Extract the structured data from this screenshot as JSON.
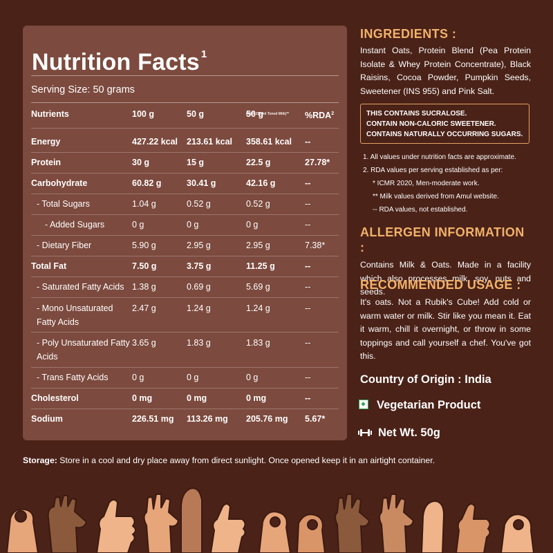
{
  "nutrition": {
    "title": "Nutrition Facts",
    "title_sup": "1",
    "serving": "Serving Size: 50 grams",
    "headers": {
      "nutrients": "Nutrients",
      "g100": "100 g",
      "g50": "50 g",
      "g50milk": "50 g",
      "g50milk_note": "(With 250 ml Toned Milk)**",
      "rda": "%RDA",
      "rda_sup": "2"
    },
    "rows": [
      {
        "name": "Energy",
        "g100": "427.22 kcal",
        "g50": "213.61 kcal",
        "g50milk": "358.61 kcal",
        "rda": "--"
      },
      {
        "name": "Protein",
        "g100": "30 g",
        "g50": "15 g",
        "g50milk": "22.5 g",
        "rda": "27.78*"
      },
      {
        "name": "Carbohydrate",
        "g100": "60.82 g",
        "g50": "30.41 g",
        "g50milk": "42.16 g",
        "rda": "--"
      },
      {
        "name": "- Total Sugars",
        "g100": "1.04 g",
        "g50": "0.52 g",
        "g50milk": "0.52 g",
        "rda": "--"
      },
      {
        "name": "- Added Sugars",
        "g100": "0 g",
        "g50": "0 g",
        "g50milk": "0 g",
        "rda": "--"
      },
      {
        "name": "- Dietary Fiber",
        "g100": "5.90 g",
        "g50": "2.95 g",
        "g50milk": "2.95 g",
        "rda": "7.38*"
      },
      {
        "name": "Total Fat",
        "g100": "7.50 g",
        "g50": "3.75 g",
        "g50milk": "11.25 g",
        "rda": "--"
      },
      {
        "name": "- Saturated Fatty Acids",
        "g100": "1.38 g",
        "g50": "0.69 g",
        "g50milk": "5.69 g",
        "rda": "--"
      },
      {
        "name": "- Mono Unsaturated Fatty Acids",
        "g100": "2.47 g",
        "g50": "1.24 g",
        "g50milk": "1.24 g",
        "rda": "--"
      },
      {
        "name": "- Poly Unsaturated Fatty Acids",
        "g100": "3.65 g",
        "g50": "1.83 g",
        "g50milk": "1.83 g",
        "rda": "--"
      },
      {
        "name": "- Trans Fatty Acids",
        "g100": "0 g",
        "g50": "0 g",
        "g50milk": "0 g",
        "rda": "--"
      },
      {
        "name": "Cholesterol",
        "g100": "0 mg",
        "g50": "0 mg",
        "g50milk": "0 mg",
        "rda": "--"
      },
      {
        "name": "Sodium",
        "g100": "226.51 mg",
        "g50": "113.26 mg",
        "g50milk": "205.76 mg",
        "rda": "5.67*"
      }
    ]
  },
  "ingredients": {
    "heading": "INGREDIENTS :",
    "text": "Instant Oats, Protein Blend (Pea Protein Isolate & Whey Protein Concentrate), Black Raisins, Cocoa Powder, Pumpkin Seeds, Sweetener (INS 955) and Pink Salt."
  },
  "warning": {
    "line1": "THIS CONTAINS SUCRALOSE.",
    "line2": "CONTAIN NON-CALORIC SWEETENER.",
    "line3": "CONTAINS NATURALLY OCCURRING SUGARS."
  },
  "notes": {
    "n1": "1. All values under nutrition facts are approximate.",
    "n2": "2. RDA values per serving established as per:",
    "n3": "*   ICMR 2020, Men-moderate work.",
    "n4": "**  Milk values derived from Amul website.",
    "n5": "--   RDA values, not established."
  },
  "allergen": {
    "heading": "ALLERGEN INFORMATION :",
    "text": "Contains Milk & Oats. Made in a facility which also processes milk, soy, nuts and seeds."
  },
  "usage": {
    "heading": "RECOMMENDED USAGE :",
    "text": "It's oats. Not a Rubik's Cube! Add cold or warm water or milk. Stir like you mean it. Eat it warm, chill it overnight, or throw in some toppings and call yourself a chef. You've got this."
  },
  "origin": "Country of Origin : India",
  "veg": "Vegetarian Product",
  "net_weight": "Net Wt. 50g",
  "storage": {
    "label": "Storage:",
    "text": " Store in a cool and dry place away from direct sunlight. Once opened keep it in an airtight container."
  },
  "colors": {
    "background": "#4a2218",
    "panel": "#7c4a3e",
    "accent": "#f2b26a",
    "veg_green": "#3ba55c"
  },
  "icons": [
    "vegetarian-icon",
    "dumbbell-icon",
    "hands-illustration"
  ]
}
